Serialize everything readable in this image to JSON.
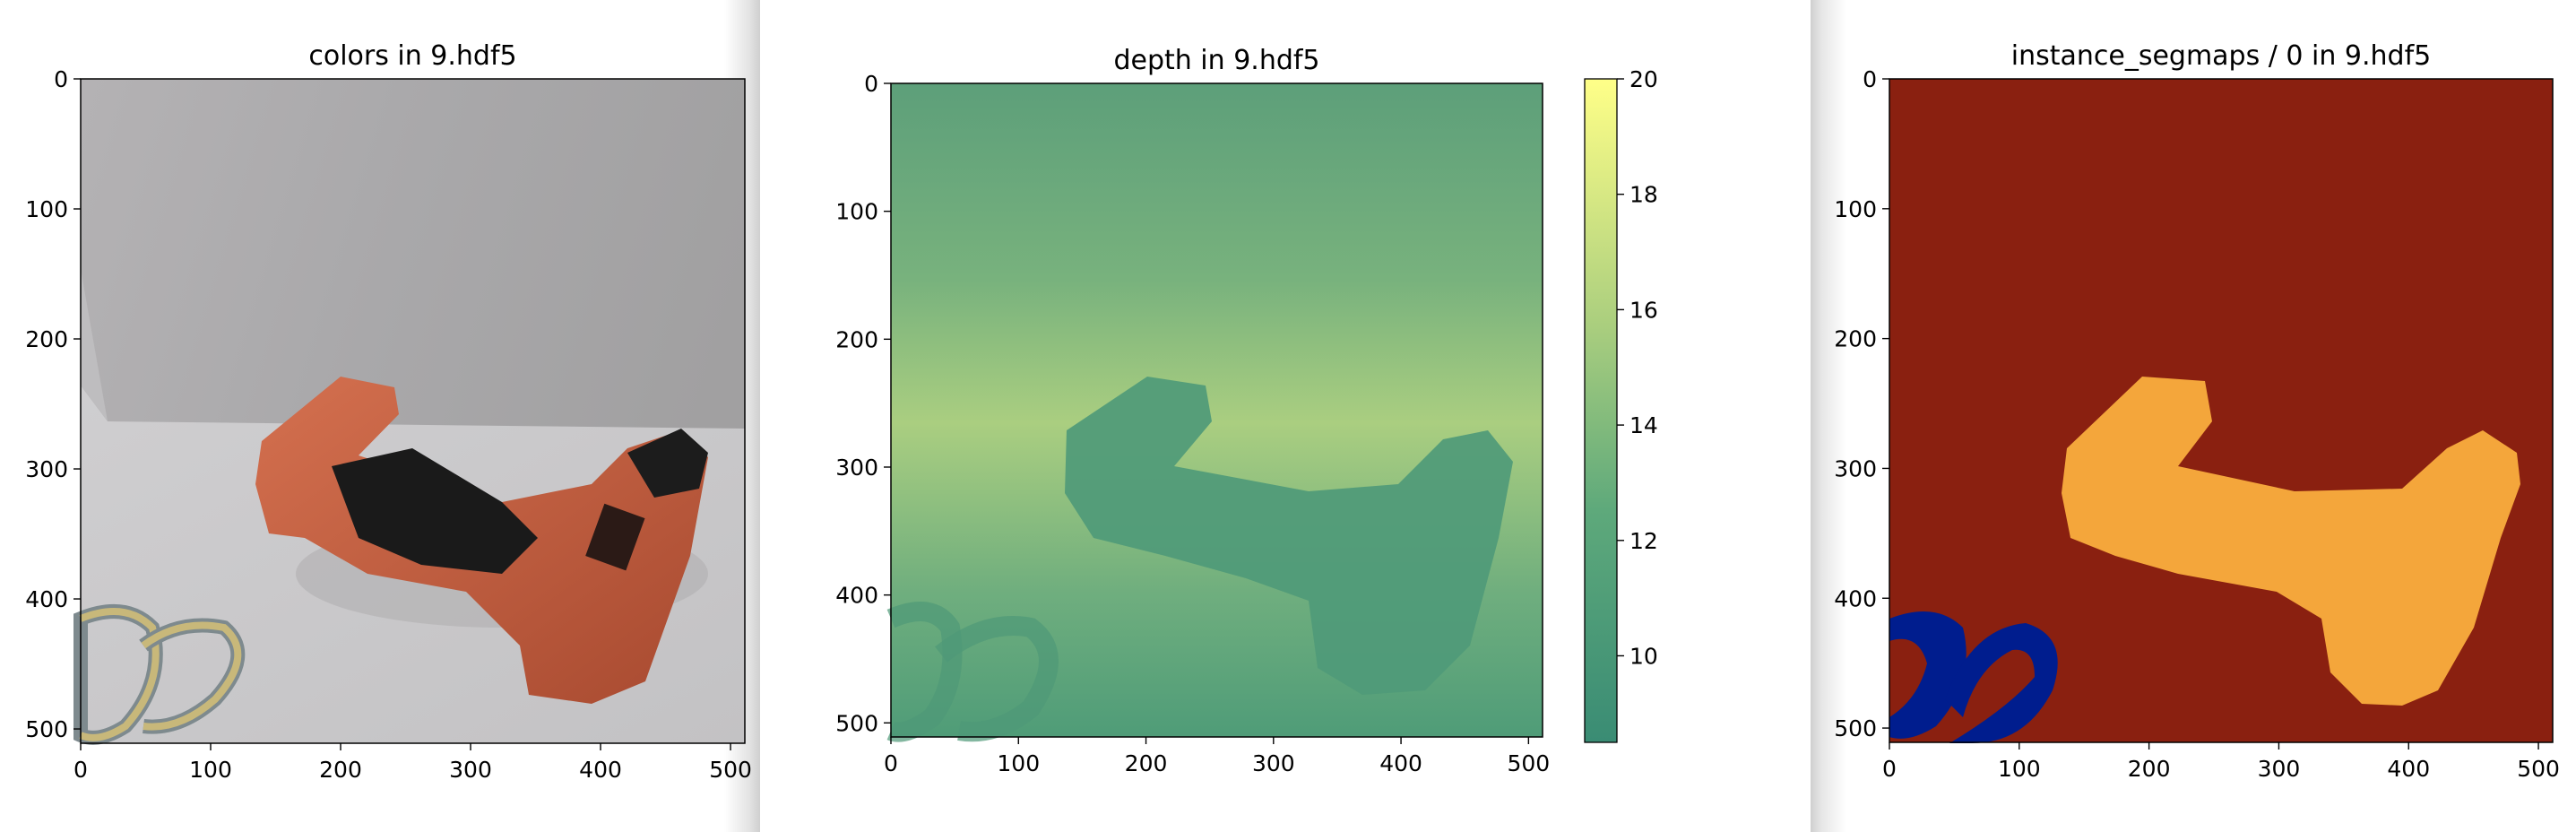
{
  "chart_data": [
    {
      "type": "heatmap",
      "title": "colors in 9.hdf5",
      "xlim": [
        0,
        511
      ],
      "ylim": [
        511,
        0
      ],
      "xticks": [
        0,
        100,
        200,
        300,
        400,
        500
      ],
      "yticks": [
        0,
        100,
        200,
        300,
        400,
        500
      ],
      "xticklabels": [
        "0",
        "100",
        "200",
        "300",
        "400",
        "500"
      ],
      "yticklabels": [
        "0",
        "100",
        "200",
        "300",
        "400",
        "500"
      ]
    },
    {
      "type": "heatmap",
      "title": "depth in 9.hdf5",
      "xlim": [
        0,
        511
      ],
      "ylim": [
        511,
        0
      ],
      "xticks": [
        0,
        100,
        200,
        300,
        400,
        500
      ],
      "yticks": [
        0,
        100,
        200,
        300,
        400,
        500
      ],
      "xticklabels": [
        "0",
        "100",
        "200",
        "300",
        "400",
        "500"
      ],
      "yticklabels": [
        "0",
        "100",
        "200",
        "300",
        "400",
        "500"
      ],
      "colorbar": {
        "range": [
          8.5,
          20
        ],
        "ticks": [
          10,
          12,
          14,
          16,
          18,
          20
        ],
        "ticklabels": [
          "10",
          "12",
          "14",
          "16",
          "18",
          "20"
        ],
        "colors": [
          "#3a8c74",
          "#5ea97b",
          "#a8cd7e",
          "#ffff88"
        ]
      }
    },
    {
      "type": "heatmap",
      "title": "instance_segmaps / 0 in 9.hdf5",
      "xlim": [
        0,
        511
      ],
      "ylim": [
        511,
        0
      ],
      "xticks": [
        0,
        100,
        200,
        300,
        400,
        500
      ],
      "yticks": [
        0,
        100,
        200,
        300,
        400,
        500
      ],
      "xticklabels": [
        "0",
        "100",
        "200",
        "300",
        "400",
        "500"
      ],
      "yticklabels": [
        "0",
        "100",
        "200",
        "300",
        "400",
        "500"
      ],
      "colors": {
        "background": "#8a2010",
        "drill": "#f4a63b",
        "tape": "#001d8e"
      }
    }
  ]
}
